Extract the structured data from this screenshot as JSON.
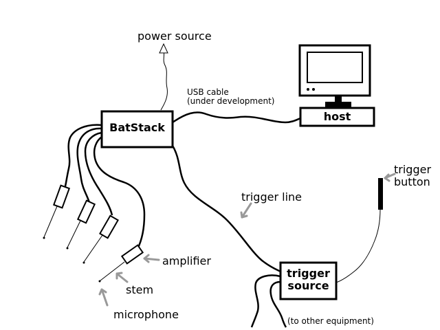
{
  "labels": {
    "power_source": "power source",
    "usb_cable_line1": "USB cable",
    "usb_cable_line2": "(under development)",
    "batstack": "BatStack",
    "host": "host",
    "trigger_button_line1": "trigger",
    "trigger_button_line2": "button",
    "trigger_line": "trigger line",
    "trigger_source_line1": "trigger",
    "trigger_source_line2": "source",
    "to_other_equipment": "(to other equipment)",
    "amplifier": "amplifier",
    "stem": "stem",
    "microphone": "microphone"
  },
  "colors": {
    "ink": "#000000",
    "arrow": "#999999",
    "background": "#ffffff"
  },
  "icons": {
    "host": "computer-monitor-icon",
    "power": "hollow-arrow-up-icon",
    "button": "push-button-icon"
  }
}
